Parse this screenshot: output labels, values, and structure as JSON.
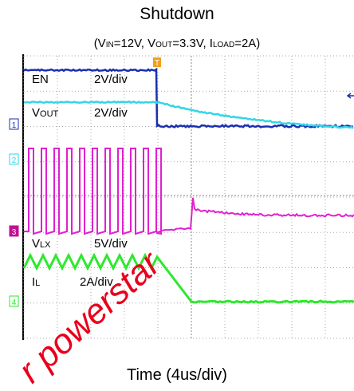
{
  "title": "Shutdown",
  "subtitle": [
    "(V",
    "IN",
    "=12V, V",
    "OUT",
    "=3.3V, I",
    "LOAD",
    "=2A)"
  ],
  "channels": [
    {
      "marker": "1",
      "name": [
        "EN",
        ""
      ],
      "scale": "2V/div"
    },
    {
      "marker": "2",
      "name": [
        "V",
        "OUT"
      ],
      "scale": "2V/div"
    },
    {
      "marker": "3",
      "name": [
        "V",
        "LX"
      ],
      "scale": "5V/div"
    },
    {
      "marker": "4",
      "name": [
        "I",
        "L"
      ],
      "scale": "2A/div"
    }
  ],
  "trigger": "T",
  "x_label": "Time (4us/div)",
  "watermark": "r powerstar"
}
